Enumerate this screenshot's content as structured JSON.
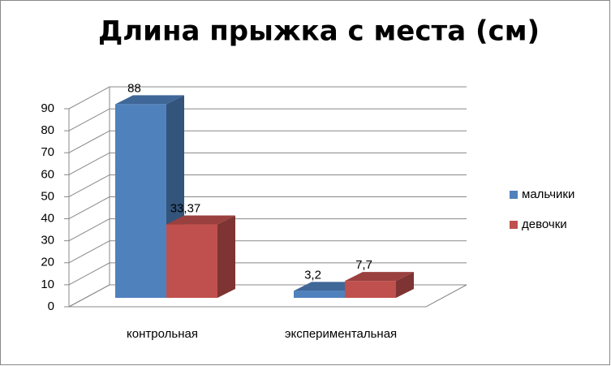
{
  "chart_data": {
    "type": "bar3d",
    "title": "Длина прыжка с места (см)",
    "categories": [
      "контрольная",
      "экспериментальная"
    ],
    "series": [
      {
        "name": "мальчики",
        "color": "#4f81bd",
        "values": [
          88,
          3.2
        ],
        "value_labels": [
          "88",
          "3,2"
        ]
      },
      {
        "name": "девочки",
        "color": "#c0504d",
        "values": [
          33.37,
          7.7
        ],
        "value_labels": [
          "33,37",
          "7,7"
        ]
      }
    ],
    "ylim": [
      0,
      90
    ],
    "yticks": [
      0,
      10,
      20,
      30,
      40,
      50,
      60,
      70,
      80,
      90
    ],
    "grid": true,
    "legend": "right"
  }
}
